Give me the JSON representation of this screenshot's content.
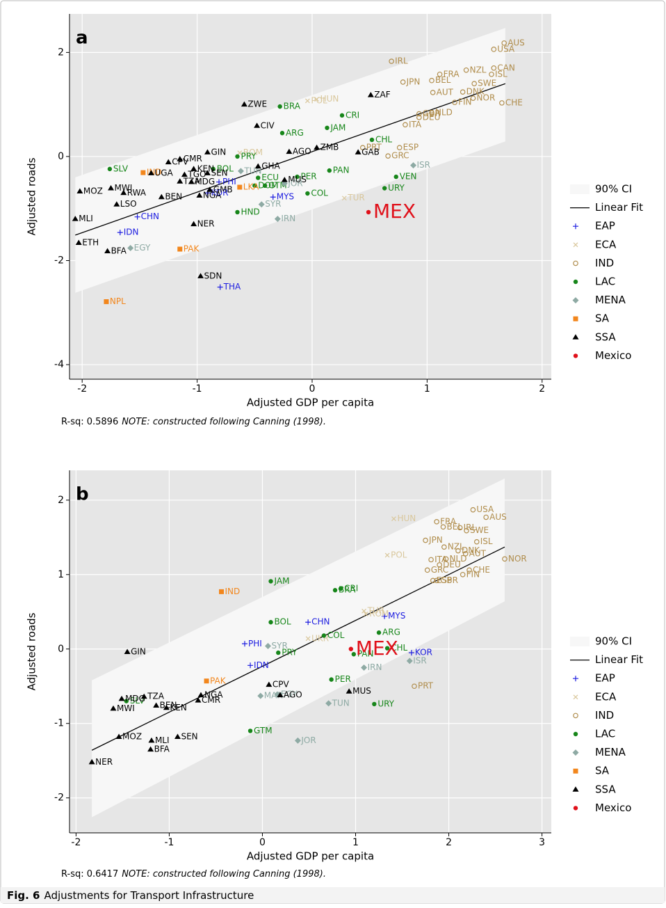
{
  "chart_data": [
    {
      "type": "scatter",
      "panel": "a",
      "xlabel": "Adjusted GDP per capita",
      "ylabel": "Adjusted roads",
      "xlim": [
        -2.11,
        2.08
      ],
      "ylim": [
        -4.28,
        2.74
      ],
      "xticks": [
        -2,
        -1,
        0,
        1,
        2
      ],
      "yticks": [
        -4,
        -2,
        0,
        2
      ],
      "grid": true,
      "note": "R-sq: 0.5896",
      "note_italic": "NOTE: constructed following Canning (1998).",
      "ci": {
        "name": "90% CI",
        "color": "#f7f7f7",
        "x": [
          -2.06,
          1.68
        ],
        "upper": [
          -0.4,
          2.47
        ],
        "lower": [
          -2.62,
          0.29
        ]
      },
      "fit": {
        "name": "Linear Fit",
        "color": "#000000",
        "x": [
          -2.06,
          1.68
        ],
        "y": [
          -1.51,
          1.4
        ]
      },
      "series": [
        {
          "name": "EAP",
          "color": "#1c1ce0",
          "marker": "plus",
          "labels": [
            "CHN",
            "IDN",
            "PHI",
            "KOR",
            "MYS",
            "THA"
          ],
          "x": [
            -1.52,
            -1.67,
            -0.81,
            -0.91,
            -0.34,
            -0.8
          ],
          "y": [
            -1.16,
            -1.46,
            -0.49,
            -0.7,
            -0.78,
            -2.51
          ]
        },
        {
          "name": "ECA",
          "color": "#d9c79c",
          "marker": "x",
          "labels": [
            "HUN",
            "POL",
            "ROM",
            "TUR"
          ],
          "x": [
            0.04,
            -0.04,
            -0.63,
            0.28
          ],
          "y": [
            1.1,
            1.07,
            0.07,
            -0.8
          ]
        },
        {
          "name": "IND",
          "color": "#b08d4c",
          "marker": "hollow-circle",
          "labels": [
            "AUS",
            "USA",
            "IRL",
            "CAN",
            "FRA",
            "NZL",
            "ISL",
            "JPN",
            "BEL",
            "SWE",
            "AUT",
            "DNK",
            "NOR",
            "FIN",
            "CHE",
            "GBR",
            "NLD",
            "DEU",
            "ITA",
            "PRT",
            "ESP",
            "GRC"
          ],
          "x": [
            1.67,
            1.58,
            0.69,
            1.58,
            1.11,
            1.34,
            1.56,
            0.79,
            1.04,
            1.41,
            1.05,
            1.31,
            1.4,
            1.24,
            1.65,
            0.93,
            1.04,
            0.93,
            0.81,
            0.44,
            0.76,
            0.66
          ],
          "y": [
            2.18,
            2.06,
            1.83,
            1.7,
            1.58,
            1.66,
            1.58,
            1.43,
            1.46,
            1.4,
            1.23,
            1.24,
            1.12,
            1.04,
            1.03,
            0.82,
            0.84,
            0.75,
            0.61,
            0.17,
            0.17,
            0.01
          ]
        },
        {
          "name": "LAC",
          "color": "#17861a",
          "marker": "circle",
          "labels": [
            "BRA",
            "CRI",
            "JAM",
            "ARG",
            "CHL",
            "PRY",
            "SLV",
            "BOL",
            "PAN",
            "PER",
            "ECU",
            "VEN",
            "DOM",
            "GTM",
            "COL",
            "URY",
            "HND"
          ],
          "x": [
            -0.28,
            0.26,
            0.13,
            -0.26,
            0.52,
            -0.65,
            -1.76,
            -0.86,
            0.15,
            -0.13,
            -0.47,
            0.73,
            -0.5,
            -0.41,
            -0.04,
            0.63,
            -0.65
          ],
          "y": [
            0.96,
            0.79,
            0.55,
            0.45,
            0.32,
            0.0,
            -0.24,
            -0.24,
            -0.27,
            -0.39,
            -0.41,
            -0.39,
            -0.56,
            -0.56,
            -0.71,
            -0.61,
            -1.07
          ]
        },
        {
          "name": "MENA",
          "color": "#8eaaa4",
          "marker": "diamond",
          "labels": [
            "TUN",
            "ISR",
            "JOR",
            "SYR",
            "IRN",
            "EGY"
          ],
          "x": [
            -0.62,
            0.88,
            -0.24,
            -0.44,
            -0.3,
            -1.58
          ],
          "y": [
            -0.28,
            -0.17,
            -0.52,
            -0.92,
            -1.2,
            -1.76
          ]
        },
        {
          "name": "SA",
          "color": "#f2861c",
          "marker": "square",
          "labels": [
            "IND",
            "LKA",
            "PAK",
            "NPL"
          ],
          "x": [
            -1.47,
            -0.63,
            -1.15,
            -1.79
          ],
          "y": [
            -0.31,
            -0.59,
            -1.78,
            -2.79
          ]
        },
        {
          "name": "SSA",
          "color": "#000000",
          "marker": "triangle",
          "labels": [
            "ZWE",
            "ZAF",
            "CIV",
            "AGO",
            "ZMB",
            "GAB",
            "GIN",
            "CMR",
            "CPV",
            "UGA",
            "KEN",
            "TGO",
            "SEN",
            "GHA",
            "TZA",
            "MDG",
            "MUS",
            "GMB",
            "NGA",
            "MOZ",
            "MWI",
            "RWA",
            "BEN",
            "LSO",
            "MLI",
            "NER",
            "ETH",
            "BFA",
            "SDN"
          ],
          "x": [
            -0.59,
            0.51,
            -0.48,
            -0.2,
            0.04,
            0.4,
            -0.91,
            -1.15,
            -1.25,
            -1.4,
            -1.03,
            -1.11,
            -0.91,
            -0.47,
            -1.15,
            -1.05,
            -0.24,
            -0.89,
            -0.98,
            -2.02,
            -1.75,
            -1.64,
            -1.31,
            -1.7,
            -2.06,
            -1.03,
            -2.03,
            -1.78,
            -0.97
          ],
          "y": [
            1.0,
            1.18,
            0.59,
            0.09,
            0.17,
            0.08,
            0.08,
            -0.05,
            -0.11,
            -0.32,
            -0.24,
            -0.35,
            -0.32,
            -0.19,
            -0.48,
            -0.49,
            -0.45,
            -0.64,
            -0.75,
            -0.67,
            -0.61,
            -0.7,
            -0.78,
            -0.92,
            -1.2,
            -1.3,
            -1.66,
            -1.82,
            -2.3
          ]
        },
        {
          "name": "Mexico",
          "color": "#e0101a",
          "marker": "circle",
          "highlight": true,
          "labels": [
            "MEX"
          ],
          "x": [
            0.49
          ],
          "y": [
            -1.07
          ]
        }
      ]
    },
    {
      "type": "scatter",
      "panel": "b",
      "xlabel": "Adjusted GDP per capita",
      "ylabel": "Adjusted roads",
      "xlim": [
        -2.07,
        3.1
      ],
      "ylim": [
        -2.47,
        2.4
      ],
      "xticks": [
        -2,
        -1,
        0,
        1,
        2,
        3
      ],
      "yticks": [
        -2,
        -1,
        0,
        1,
        2
      ],
      "grid": true,
      "note": "R-sq: 0.6417",
      "note_italic": "NOTE: constructed following Canning (1998).",
      "ci": {
        "name": "90% CI",
        "color": "#f7f7f7",
        "x": [
          -1.83,
          2.6
        ],
        "upper": [
          -0.42,
          2.29
        ],
        "lower": [
          -2.26,
          0.64
        ]
      },
      "fit": {
        "name": "Linear Fit",
        "color": "#000000",
        "x": [
          -1.83,
          2.6
        ],
        "y": [
          -1.36,
          1.37
        ]
      },
      "series": [
        {
          "name": "EAP",
          "color": "#1c1ce0",
          "marker": "plus",
          "labels": [
            "CHN",
            "MYS",
            "PHI",
            "IDN",
            "KOR"
          ],
          "x": [
            0.49,
            1.31,
            -0.19,
            -0.13,
            1.6
          ],
          "y": [
            0.36,
            0.44,
            0.07,
            -0.22,
            -0.05
          ]
        },
        {
          "name": "ECA",
          "color": "#d9c79c",
          "marker": "x",
          "labels": [
            "HUN",
            "POL",
            "TUR",
            "ROM",
            "UKR"
          ],
          "x": [
            1.41,
            1.34,
            1.09,
            1.11,
            0.49
          ],
          "y": [
            1.75,
            1.26,
            0.51,
            0.47,
            0.14
          ]
        },
        {
          "name": "IND",
          "color": "#b08d4c",
          "marker": "hollow-circle",
          "labels": [
            "USA",
            "AUS",
            "FRA",
            "BEL",
            "IRL",
            "SWE",
            "JPN",
            "ISL",
            "NZL",
            "DNK",
            "AUT",
            "NOR",
            "ITA",
            "NLD",
            "DEU",
            "GRC",
            "CHE",
            "FIN",
            "ESP",
            "GBR",
            "PRT"
          ],
          "x": [
            2.26,
            2.4,
            1.87,
            1.94,
            2.12,
            2.19,
            1.75,
            2.3,
            1.95,
            2.1,
            2.18,
            2.6,
            1.81,
            1.97,
            1.9,
            1.77,
            2.22,
            2.15,
            1.83,
            1.87,
            1.63
          ],
          "y": [
            1.87,
            1.77,
            1.71,
            1.64,
            1.63,
            1.59,
            1.46,
            1.44,
            1.37,
            1.32,
            1.28,
            1.21,
            1.2,
            1.21,
            1.13,
            1.06,
            1.06,
            1.0,
            0.92,
            0.92,
            -0.5
          ]
        },
        {
          "name": "LAC",
          "color": "#17861a",
          "marker": "circle",
          "labels": [
            "JAM",
            "CRI",
            "BRA",
            "BOL",
            "ARG",
            "COL",
            "CHL",
            "PRY",
            "PAN",
            "PER",
            "URY",
            "SLV",
            "GTM"
          ],
          "x": [
            0.09,
            0.84,
            0.78,
            0.09,
            1.25,
            0.66,
            1.34,
            0.17,
            0.98,
            0.74,
            1.2,
            -1.46,
            -0.13
          ],
          "y": [
            0.91,
            0.81,
            0.79,
            0.36,
            0.22,
            0.18,
            0.01,
            -0.05,
            -0.07,
            -0.41,
            -0.74,
            -0.7,
            -1.1
          ]
        },
        {
          "name": "MENA",
          "color": "#8eaaa4",
          "marker": "diamond",
          "labels": [
            "SYR",
            "IRN",
            "ISR",
            "MAR",
            "EGY",
            "TUN",
            "JOR"
          ],
          "x": [
            0.06,
            1.09,
            1.58,
            -0.02,
            0.16,
            0.71,
            0.38
          ],
          "y": [
            0.04,
            -0.25,
            -0.16,
            -0.63,
            -0.61,
            -0.73,
            -1.23
          ]
        },
        {
          "name": "SA",
          "color": "#f2861c",
          "marker": "square",
          "labels": [
            "IND",
            "PAK"
          ],
          "x": [
            -0.44,
            -0.6
          ],
          "y": [
            0.77,
            -0.43
          ]
        },
        {
          "name": "SSA",
          "color": "#000000",
          "marker": "triangle",
          "labels": [
            "GIN",
            "CPV",
            "AGO",
            "MUS",
            "NGA",
            "CMR",
            "TZA",
            "MDG",
            "BEN",
            "KEN",
            "MWI",
            "MOZ",
            "SEN",
            "MLI",
            "BFA",
            "NER"
          ],
          "x": [
            -1.45,
            0.07,
            0.19,
            0.93,
            -0.66,
            -0.69,
            -1.27,
            -1.51,
            -1.14,
            -1.03,
            -1.6,
            -1.54,
            -0.91,
            -1.19,
            -1.2,
            -1.83
          ],
          "y": [
            -0.04,
            -0.48,
            -0.62,
            -0.57,
            -0.62,
            -0.69,
            -0.64,
            -0.67,
            -0.76,
            -0.79,
            -0.8,
            -1.18,
            -1.18,
            -1.23,
            -1.35,
            -1.52
          ]
        },
        {
          "name": "Mexico",
          "color": "#e0101a",
          "marker": "circle",
          "highlight": true,
          "labels": [
            "MEX"
          ],
          "x": [
            0.95
          ],
          "y": [
            0.0
          ]
        }
      ]
    }
  ],
  "caption": {
    "label": "Fig. 6",
    "text": "Adjustments for Transport Infrastructure"
  }
}
